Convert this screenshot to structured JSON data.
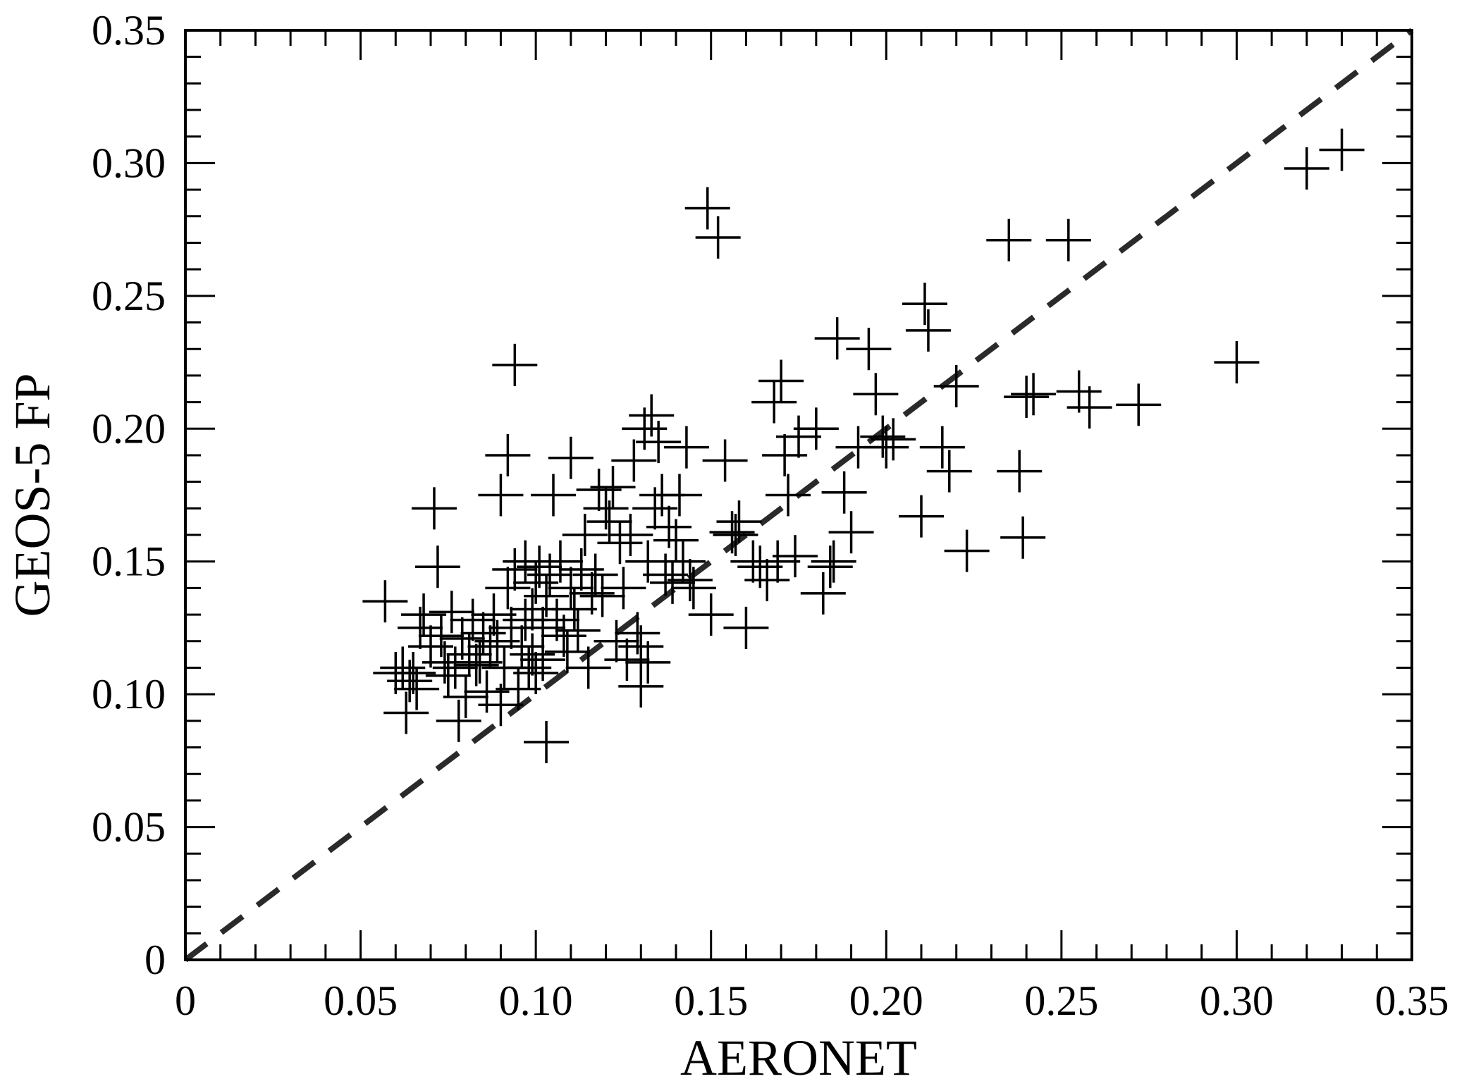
{
  "chart_data": {
    "type": "scatter",
    "marker": "plus",
    "xlabel": "AERONET",
    "ylabel": "GEOS-5 FP",
    "xlim": [
      0,
      0.35
    ],
    "ylim": [
      0,
      0.35
    ],
    "x_ticks": [
      "0",
      "0.05",
      "0.10",
      "0.15",
      "0.20",
      "0.25",
      "0.30",
      "0.35"
    ],
    "y_ticks": [
      "0",
      "0.05",
      "0.10",
      "0.15",
      "0.20",
      "0.25",
      "0.30",
      "0.35"
    ],
    "reference_line": {
      "style": "dashed",
      "from": [
        0,
        0
      ],
      "to": [
        0.35,
        0.35
      ]
    },
    "colors": {
      "marker": "#000000",
      "reference_line": "#2a2a2a"
    },
    "points": [
      [
        0.057,
        0.135
      ],
      [
        0.06,
        0.108
      ],
      [
        0.062,
        0.11
      ],
      [
        0.063,
        0.093
      ],
      [
        0.064,
        0.105
      ],
      [
        0.065,
        0.108
      ],
      [
        0.066,
        0.102
      ],
      [
        0.067,
        0.125
      ],
      [
        0.068,
        0.13
      ],
      [
        0.07,
        0.118
      ],
      [
        0.071,
        0.17
      ],
      [
        0.072,
        0.148
      ],
      [
        0.073,
        0.122
      ],
      [
        0.074,
        0.112
      ],
      [
        0.075,
        0.107
      ],
      [
        0.076,
        0.131
      ],
      [
        0.077,
        0.11
      ],
      [
        0.078,
        0.09
      ],
      [
        0.079,
        0.121
      ],
      [
        0.08,
        0.099
      ],
      [
        0.081,
        0.115
      ],
      [
        0.082,
        0.128
      ],
      [
        0.083,
        0.111
      ],
      [
        0.084,
        0.112
      ],
      [
        0.085,
        0.123
      ],
      [
        0.086,
        0.101
      ],
      [
        0.087,
        0.118
      ],
      [
        0.088,
        0.13
      ],
      [
        0.089,
        0.12
      ],
      [
        0.09,
        0.096
      ],
      [
        0.09,
        0.175
      ],
      [
        0.091,
        0.11
      ],
      [
        0.092,
        0.14
      ],
      [
        0.092,
        0.19
      ],
      [
        0.093,
        0.125
      ],
      [
        0.094,
        0.224
      ],
      [
        0.094,
        0.147
      ],
      [
        0.095,
        0.102
      ],
      [
        0.096,
        0.118
      ],
      [
        0.097,
        0.128
      ],
      [
        0.097,
        0.15
      ],
      [
        0.098,
        0.11
      ],
      [
        0.099,
        0.132
      ],
      [
        0.099,
        0.115
      ],
      [
        0.1,
        0.142
      ],
      [
        0.1,
        0.108
      ],
      [
        0.101,
        0.148
      ],
      [
        0.102,
        0.125
      ],
      [
        0.102,
        0.113
      ],
      [
        0.103,
        0.082
      ],
      [
        0.103,
        0.137
      ],
      [
        0.104,
        0.145
      ],
      [
        0.105,
        0.175
      ],
      [
        0.106,
        0.128
      ],
      [
        0.107,
        0.15
      ],
      [
        0.108,
        0.122
      ],
      [
        0.109,
        0.116
      ],
      [
        0.11,
        0.14
      ],
      [
        0.11,
        0.189
      ],
      [
        0.111,
        0.132
      ],
      [
        0.112,
        0.124
      ],
      [
        0.113,
        0.147
      ],
      [
        0.114,
        0.16
      ],
      [
        0.115,
        0.11
      ],
      [
        0.116,
        0.138
      ],
      [
        0.117,
        0.145
      ],
      [
        0.118,
        0.177
      ],
      [
        0.119,
        0.137
      ],
      [
        0.12,
        0.17
      ],
      [
        0.121,
        0.165
      ],
      [
        0.122,
        0.178
      ],
      [
        0.123,
        0.12
      ],
      [
        0.124,
        0.157
      ],
      [
        0.125,
        0.14
      ],
      [
        0.126,
        0.113
      ],
      [
        0.127,
        0.16
      ],
      [
        0.128,
        0.188
      ],
      [
        0.129,
        0.123
      ],
      [
        0.13,
        0.103
      ],
      [
        0.13,
        0.118
      ],
      [
        0.131,
        0.2
      ],
      [
        0.132,
        0.15
      ],
      [
        0.132,
        0.112
      ],
      [
        0.133,
        0.205
      ],
      [
        0.134,
        0.17
      ],
      [
        0.135,
        0.195
      ],
      [
        0.136,
        0.175
      ],
      [
        0.137,
        0.145
      ],
      [
        0.138,
        0.163
      ],
      [
        0.139,
        0.142
      ],
      [
        0.14,
        0.158
      ],
      [
        0.141,
        0.175
      ],
      [
        0.142,
        0.15
      ],
      [
        0.143,
        0.193
      ],
      [
        0.144,
        0.143
      ],
      [
        0.145,
        0.14
      ],
      [
        0.149,
        0.283
      ],
      [
        0.15,
        0.13
      ],
      [
        0.152,
        0.272
      ],
      [
        0.154,
        0.188
      ],
      [
        0.156,
        0.161
      ],
      [
        0.157,
        0.16
      ],
      [
        0.158,
        0.165
      ],
      [
        0.16,
        0.125
      ],
      [
        0.162,
        0.15
      ],
      [
        0.164,
        0.148
      ],
      [
        0.166,
        0.143
      ],
      [
        0.168,
        0.21
      ],
      [
        0.169,
        0.15
      ],
      [
        0.17,
        0.218
      ],
      [
        0.171,
        0.19
      ],
      [
        0.172,
        0.175
      ],
      [
        0.174,
        0.152
      ],
      [
        0.175,
        0.197
      ],
      [
        0.18,
        0.2
      ],
      [
        0.182,
        0.138
      ],
      [
        0.184,
        0.148
      ],
      [
        0.185,
        0.15
      ],
      [
        0.186,
        0.234
      ],
      [
        0.188,
        0.176
      ],
      [
        0.19,
        0.161
      ],
      [
        0.192,
        0.193
      ],
      [
        0.195,
        0.23
      ],
      [
        0.197,
        0.213
      ],
      [
        0.199,
        0.197
      ],
      [
        0.2,
        0.193
      ],
      [
        0.202,
        0.196
      ],
      [
        0.21,
        0.167
      ],
      [
        0.211,
        0.247
      ],
      [
        0.212,
        0.237
      ],
      [
        0.216,
        0.193
      ],
      [
        0.218,
        0.184
      ],
      [
        0.22,
        0.216
      ],
      [
        0.223,
        0.154
      ],
      [
        0.235,
        0.271
      ],
      [
        0.238,
        0.184
      ],
      [
        0.239,
        0.159
      ],
      [
        0.24,
        0.212
      ],
      [
        0.242,
        0.213
      ],
      [
        0.252,
        0.271
      ],
      [
        0.255,
        0.214
      ],
      [
        0.258,
        0.208
      ],
      [
        0.272,
        0.209
      ],
      [
        0.3,
        0.225
      ],
      [
        0.32,
        0.298
      ],
      [
        0.33,
        0.305
      ]
    ]
  }
}
